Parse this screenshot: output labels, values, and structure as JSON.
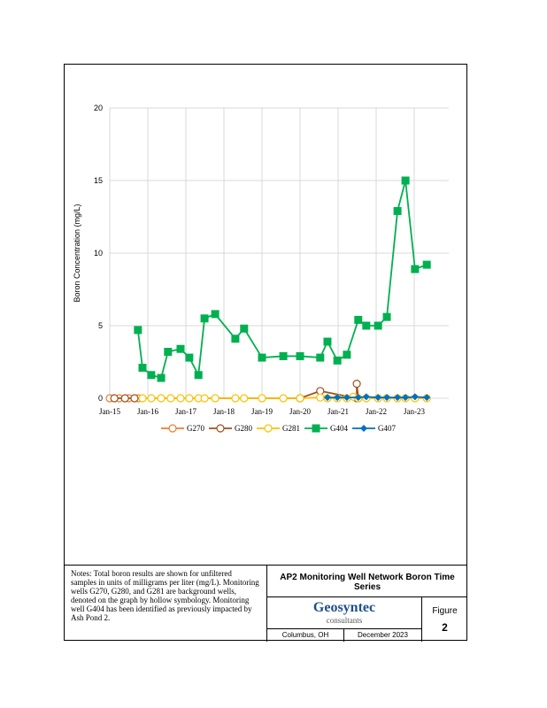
{
  "chart_data": {
    "type": "line",
    "ylabel": "Boron Concentration (mg/L)",
    "xlabel": "",
    "ylim": [
      0,
      20
    ],
    "yticks": [
      0,
      5,
      10,
      15,
      20
    ],
    "xlim": [
      2015,
      2024
    ],
    "xticks": [
      {
        "v": 2015,
        "label": "Jan-15"
      },
      {
        "v": 2016,
        "label": "Jan-16"
      },
      {
        "v": 2017,
        "label": "Jan-17"
      },
      {
        "v": 2018,
        "label": "Jan-18"
      },
      {
        "v": 2019,
        "label": "Jan-19"
      },
      {
        "v": 2020,
        "label": "Jan-20"
      },
      {
        "v": 2021,
        "label": "Jan-21"
      },
      {
        "v": 2022,
        "label": "Jan-22"
      },
      {
        "v": 2023,
        "label": "Jan-23"
      }
    ],
    "grid": true,
    "legend": "bottom",
    "series": [
      {
        "name": "G270",
        "color": "#ED7D31",
        "marker": "hollow-circle",
        "x": [
          2015.0,
          2015.25,
          2015.5,
          2015.75
        ],
        "y": [
          0,
          0,
          0,
          0
        ]
      },
      {
        "name": "G280",
        "color": "#A0501E",
        "marker": "hollow-circle",
        "x": [
          2015.12,
          2015.4,
          2015.65,
          2020.0,
          2020.53,
          2021.49,
          2021.49,
          2021.53
        ],
        "y": [
          0,
          0,
          0,
          0,
          0.5,
          0,
          1.0,
          0
        ]
      },
      {
        "name": "G281",
        "color": "#FFC000",
        "marker": "hollow-circle",
        "x": [
          2015.86,
          2016.09,
          2016.35,
          2016.6,
          2016.86,
          2017.09,
          2017.33,
          2017.49,
          2017.77,
          2018.3,
          2018.53,
          2019.0,
          2019.56,
          2020.0,
          2020.53,
          2020.72,
          2020.98,
          2021.23,
          2021.4,
          2021.53,
          2021.74,
          2022.05,
          2022.28,
          2022.56,
          2022.77,
          2023.02,
          2023.33
        ],
        "y": [
          0,
          0,
          0,
          0,
          0,
          0,
          0,
          0,
          0,
          0,
          0,
          0,
          0,
          0,
          0.05,
          0,
          0,
          0,
          0.1,
          0,
          0,
          0,
          0,
          0,
          0,
          0,
          0
        ]
      },
      {
        "name": "G404",
        "color": "#00B050",
        "marker": "square",
        "x": [
          2015.74,
          2015.86,
          2016.09,
          2016.35,
          2016.53,
          2016.86,
          2017.09,
          2017.33,
          2017.49,
          2017.77,
          2018.3,
          2018.53,
          2019.0,
          2019.56,
          2020.0,
          2020.53,
          2020.72,
          2020.98,
          2021.23,
          2021.53,
          2021.74,
          2022.05,
          2022.28,
          2022.56,
          2022.77,
          2023.02,
          2023.33
        ],
        "y": [
          4.7,
          2.1,
          1.6,
          1.4,
          3.2,
          3.4,
          2.8,
          1.6,
          5.5,
          5.8,
          4.1,
          4.8,
          2.8,
          2.9,
          2.9,
          2.8,
          3.9,
          2.6,
          3.0,
          5.4,
          5.0,
          5.0,
          5.6,
          12.9,
          15.0,
          8.9,
          9.2
        ]
      },
      {
        "name": "G407",
        "color": "#0070C0",
        "marker": "diamond",
        "x": [
          2020.72,
          2020.98,
          2021.23,
          2021.53,
          2021.74,
          2022.05,
          2022.28,
          2022.56,
          2022.77,
          2023.02,
          2023.33
        ],
        "y": [
          0.05,
          0.05,
          0.05,
          0.05,
          0.1,
          0.05,
          0.05,
          0.05,
          0.05,
          0.1,
          0.05
        ]
      }
    ]
  },
  "titleblock": {
    "notes": "Notes: Total boron results are shown for unfiltered samples in units of milligrams per liter (mg/L). Monitoring wells G270, G280, and G281 are background wells, denoted on the graph by hollow symbology. Monitoring well G404 has been identified as previously impacted by Ash Pond 2.",
    "title": "AP2 Monitoring Well Network Boron Time Series",
    "company": "Geosyntec",
    "company_sub": "consultants",
    "figure_label": "Figure",
    "figure_number": "2",
    "location": "Columbus, OH",
    "date": "December 2023"
  }
}
